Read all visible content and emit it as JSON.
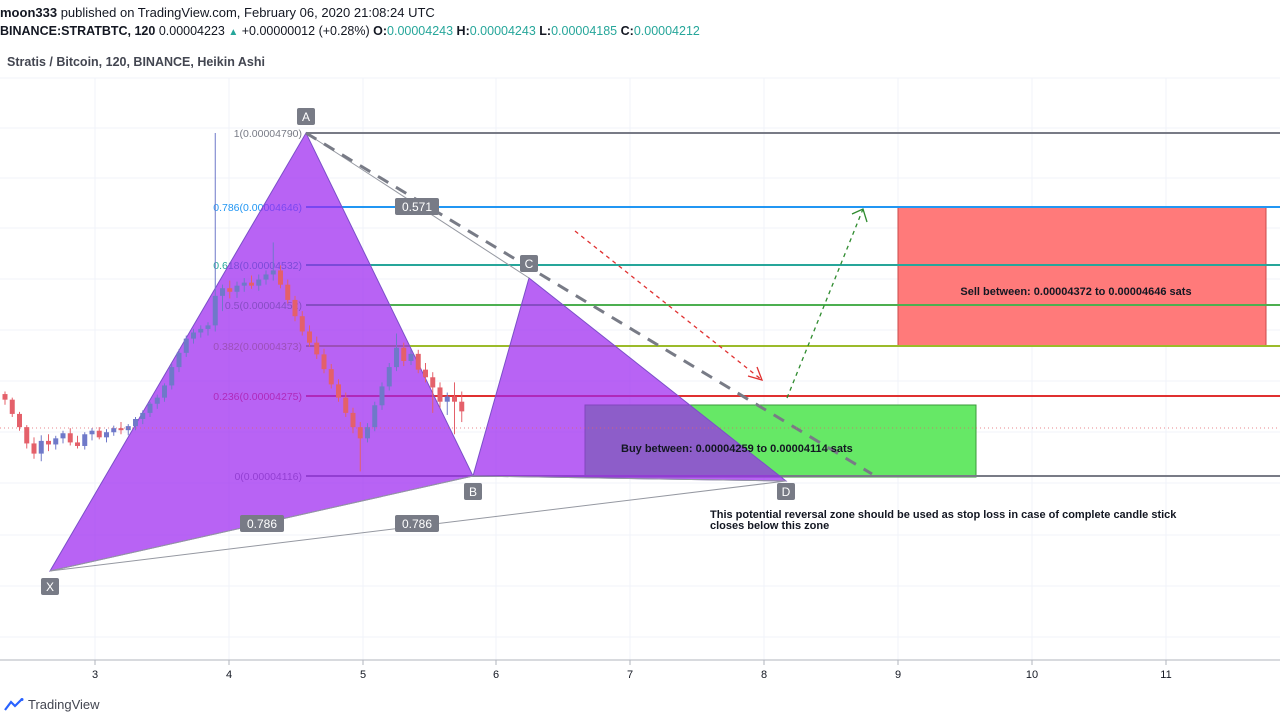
{
  "header": {
    "author": "moon333",
    "published_text": "published on TradingView.com, February 06, 2020 21:08:24 UTC",
    "symbol": "BINANCE:STRATBTC, 120",
    "last": "0.00004223",
    "change": "+0.00000012 (+0.28%)",
    "o_label": "O:",
    "o_value": "0.00004243",
    "h_label": "H:",
    "h_value": "0.00004243",
    "l_label": "L:",
    "l_value": "0.00004185",
    "c_label": "C:",
    "c_value": "0.00004212"
  },
  "pane_title": "Stratis / Bitcoin, 120, BINANCE, Heikin Ashi",
  "brand": "TradingView",
  "chart_data": {
    "type": "candlestick",
    "pattern": "harmonic XABCD",
    "x_ticks": [
      "3",
      "4",
      "5",
      "6",
      "7",
      "8",
      "9",
      "10",
      "11"
    ],
    "points": {
      "X": "X",
      "A": "A",
      "B": "B",
      "C": "C",
      "D": "D"
    },
    "ratio_labels": [
      "0.571",
      "0.786",
      "0.786"
    ],
    "fib_levels": [
      {
        "label": "1(0.00004790)",
        "color": "#787b86"
      },
      {
        "label": "0.786(0.00004646)",
        "color": "#2196f3"
      },
      {
        "label": "0.618(0.00004532)",
        "color": "#26a69a"
      },
      {
        "label": "0.5(0.00004452)",
        "color": "#4caf50"
      },
      {
        "label": "0.382(0.00004373)",
        "color": "#9bbb2a"
      },
      {
        "label": "0.236(0.00004275)",
        "color": "#e03030"
      },
      {
        "label": "0(0.00004116)",
        "color": "#787b86"
      }
    ],
    "sell_zone_text": "Sell between: 0.00004372 to 0.00004646 sats",
    "buy_zone_text": "Buy between: 0.00004259 to 0.00004114 sats",
    "note_line1": "This potential reversal zone should be used as stop loss in case of complete candle stick",
    "note_line2": "closes below this zone",
    "colors": {
      "up": "#6f79c9",
      "down": "#e4606a",
      "pattern": "#9c27f0",
      "sell_zone": "#ff7a7a",
      "buy_zone": "#66e866",
      "axis_text": "#131722"
    },
    "candles": [
      [
        4277,
        4282,
        4256,
        4266
      ],
      [
        4266,
        4270,
        4232,
        4238
      ],
      [
        4238,
        4242,
        4205,
        4212
      ],
      [
        4212,
        4216,
        4170,
        4180
      ],
      [
        4180,
        4192,
        4150,
        4160
      ],
      [
        4160,
        4196,
        4145,
        4185
      ],
      [
        4185,
        4198,
        4165,
        4178
      ],
      [
        4178,
        4195,
        4168,
        4190
      ],
      [
        4190,
        4205,
        4180,
        4200
      ],
      [
        4200,
        4210,
        4176,
        4182
      ],
      [
        4182,
        4195,
        4170,
        4175
      ],
      [
        4175,
        4202,
        4168,
        4198
      ],
      [
        4198,
        4210,
        4186,
        4205
      ],
      [
        4205,
        4212,
        4188,
        4192
      ],
      [
        4192,
        4208,
        4182,
        4202
      ],
      [
        4202,
        4215,
        4195,
        4210
      ],
      [
        4210,
        4222,
        4198,
        4206
      ],
      [
        4206,
        4218,
        4196,
        4214
      ],
      [
        4214,
        4232,
        4206,
        4228
      ],
      [
        4228,
        4245,
        4218,
        4240
      ],
      [
        4240,
        4262,
        4232,
        4258
      ],
      [
        4258,
        4276,
        4248,
        4270
      ],
      [
        4270,
        4298,
        4262,
        4294
      ],
      [
        4294,
        4336,
        4286,
        4330
      ],
      [
        4330,
        4365,
        4320,
        4358
      ],
      [
        4358,
        4392,
        4350,
        4386
      ],
      [
        4386,
        4405,
        4376,
        4398
      ],
      [
        4398,
        4412,
        4388,
        4405
      ],
      [
        4405,
        4418,
        4392,
        4412
      ],
      [
        4412,
        4790,
        4400,
        4470
      ],
      [
        4470,
        4492,
        4440,
        4485
      ],
      [
        4485,
        4500,
        4465,
        4478
      ],
      [
        4478,
        4498,
        4466,
        4490
      ],
      [
        4490,
        4505,
        4478,
        4496
      ],
      [
        4496,
        4510,
        4484,
        4490
      ],
      [
        4490,
        4512,
        4480,
        4502
      ],
      [
        4502,
        4520,
        4492,
        4512
      ],
      [
        4512,
        4575,
        4500,
        4520
      ],
      [
        4520,
        4530,
        4485,
        4492
      ],
      [
        4492,
        4502,
        4455,
        4462
      ],
      [
        4462,
        4470,
        4420,
        4430
      ],
      [
        4430,
        4440,
        4392,
        4400
      ],
      [
        4400,
        4412,
        4370,
        4378
      ],
      [
        4378,
        4390,
        4346,
        4355
      ],
      [
        4355,
        4366,
        4318,
        4326
      ],
      [
        4326,
        4336,
        4288,
        4296
      ],
      [
        4296,
        4306,
        4262,
        4270
      ],
      [
        4270,
        4280,
        4232,
        4240
      ],
      [
        4240,
        4250,
        4200,
        4212
      ],
      [
        4212,
        4222,
        4125,
        4190
      ],
      [
        4190,
        4220,
        4182,
        4212
      ],
      [
        4212,
        4262,
        4204,
        4255
      ],
      [
        4255,
        4300,
        4246,
        4292
      ],
      [
        4292,
        4338,
        4284,
        4330
      ],
      [
        4330,
        4396,
        4322,
        4368
      ],
      [
        4368,
        4378,
        4332,
        4342
      ],
      [
        4342,
        4364,
        4334,
        4356
      ],
      [
        4356,
        4364,
        4318,
        4325
      ],
      [
        4325,
        4338,
        4300,
        4310
      ],
      [
        4310,
        4320,
        4240,
        4290
      ],
      [
        4290,
        4300,
        4250,
        4262
      ],
      [
        4262,
        4280,
        4236,
        4272
      ],
      [
        4272,
        4300,
        4198,
        4262
      ],
      [
        4262,
        4282,
        4222,
        4243
      ]
    ]
  }
}
